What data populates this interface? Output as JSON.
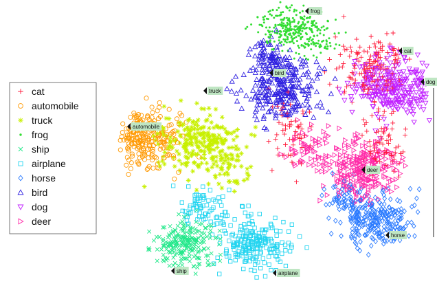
{
  "chart_data": {
    "type": "scatter",
    "legend_position": "left",
    "series": [
      {
        "name": "cat",
        "marker": "plus",
        "color": "#ff1a3a"
      },
      {
        "name": "automobile",
        "marker": "circle",
        "color": "#ff9900"
      },
      {
        "name": "truck",
        "marker": "star",
        "color": "#c8f000"
      },
      {
        "name": "frog",
        "marker": "dot",
        "color": "#33dd33"
      },
      {
        "name": "ship",
        "marker": "x",
        "color": "#22e88a"
      },
      {
        "name": "airplane",
        "marker": "square",
        "color": "#22d4f0"
      },
      {
        "name": "horse",
        "marker": "diamond",
        "color": "#2a7aff"
      },
      {
        "name": "bird",
        "marker": "triangle-up",
        "color": "#2d1fe0"
      },
      {
        "name": "dog",
        "marker": "triangle-down",
        "color": "#c020ff"
      },
      {
        "name": "deer",
        "marker": "triangle-right",
        "color": "#ff2aa8"
      }
    ],
    "cluster_labels": [
      {
        "text": "frog",
        "series": "frog"
      },
      {
        "text": "cat",
        "series": "cat"
      },
      {
        "text": "bird",
        "series": "bird"
      },
      {
        "text": "dog",
        "series": "dog"
      },
      {
        "text": "truck",
        "series": "truck"
      },
      {
        "text": "automobile",
        "series": "automobile"
      },
      {
        "text": "deer",
        "series": "deer"
      },
      {
        "text": "horse",
        "series": "horse"
      },
      {
        "text": "ship",
        "series": "ship"
      },
      {
        "text": "airplane",
        "series": "airplane"
      }
    ]
  }
}
